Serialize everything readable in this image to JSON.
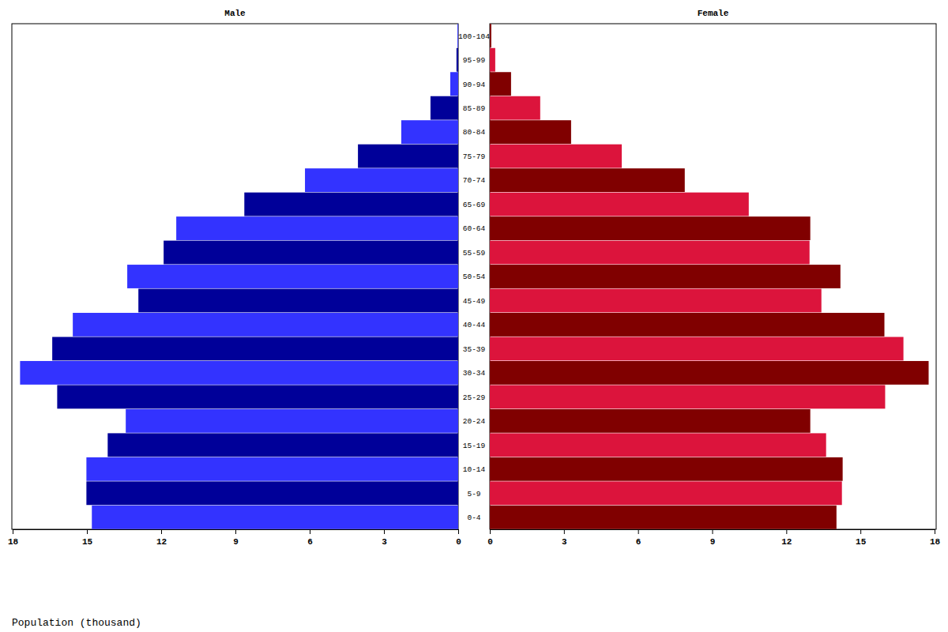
{
  "chart_data": {
    "type": "bar",
    "orientation": "horizontal",
    "xlabel": "Population (thousand)",
    "categories": [
      "0-4",
      "5-9",
      "10-14",
      "15-19",
      "20-24",
      "25-29",
      "30-34",
      "35-39",
      "40-44",
      "45-49",
      "50-54",
      "55-59",
      "60-64",
      "65-69",
      "70-74",
      "75-79",
      "80-84",
      "85-89",
      "90-94",
      "95-99",
      "100-104"
    ],
    "xlim": [
      0,
      18
    ],
    "xticks": [
      0,
      3,
      6,
      9,
      12,
      15,
      18
    ],
    "series": [
      {
        "name": "Male",
        "colors": [
          "#3333ff",
          "#000099",
          "#3333ff",
          "#000099",
          "#3333ff",
          "#000099",
          "#3333ff",
          "#000099",
          "#3333ff",
          "#000099",
          "#3333ff",
          "#000099",
          "#3333ff",
          "#000099",
          "#3333ff",
          "#000099",
          "#3333ff",
          "#000099",
          "#3333ff",
          "#000099",
          "#3333ff"
        ],
        "values": [
          14.8,
          15.02,
          15.02,
          14.16,
          13.43,
          16.2,
          17.7,
          16.4,
          15.57,
          12.92,
          13.37,
          11.9,
          11.39,
          8.64,
          6.19,
          4.05,
          2.3,
          1.12,
          0.32,
          0.07,
          0.03
        ]
      },
      {
        "name": "Female",
        "colors": [
          "#800000",
          "#dc143c",
          "#800000",
          "#dc143c",
          "#800000",
          "#dc143c",
          "#800000",
          "#dc143c",
          "#800000",
          "#dc143c",
          "#800000",
          "#dc143c",
          "#800000",
          "#dc143c",
          "#800000",
          "#dc143c",
          "#800000",
          "#dc143c",
          "#800000",
          "#dc143c",
          "#800000"
        ],
        "values": [
          14.03,
          14.25,
          14.28,
          13.61,
          12.97,
          16.0,
          17.76,
          16.74,
          15.97,
          13.42,
          14.19,
          12.94,
          12.97,
          10.48,
          7.89,
          5.34,
          3.29,
          2.04,
          0.86,
          0.22,
          0.06
        ]
      }
    ]
  }
}
